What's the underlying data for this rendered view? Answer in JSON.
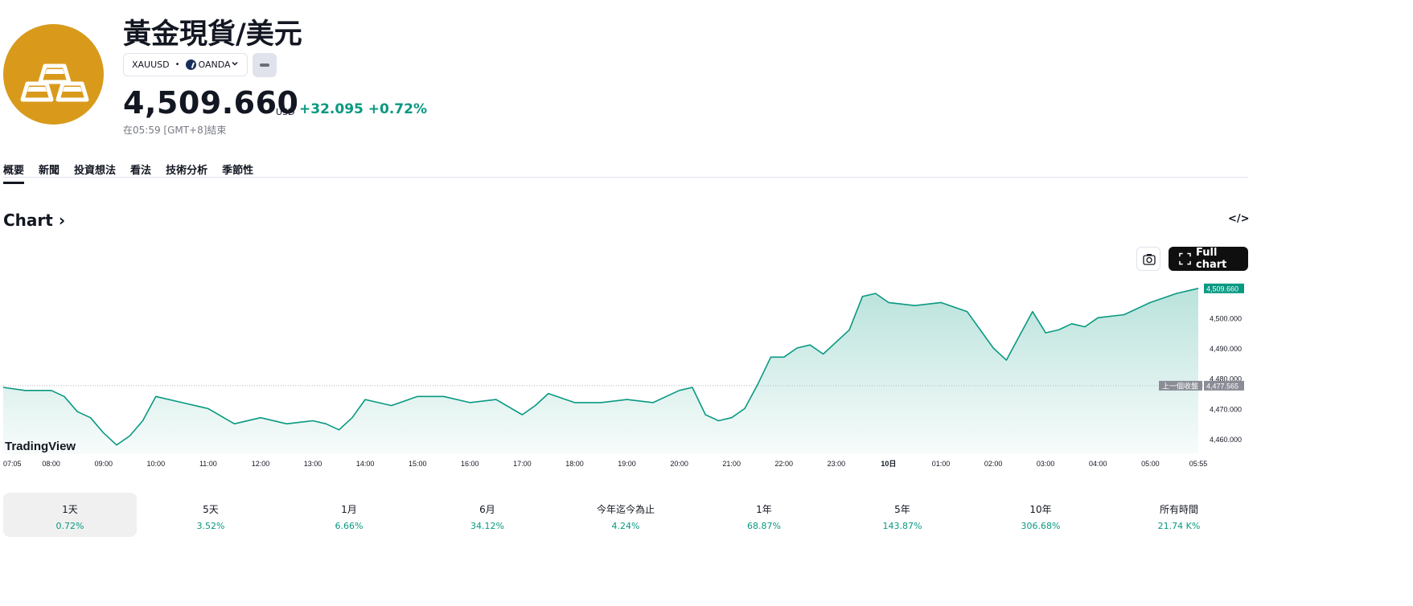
{
  "header": {
    "title": "黃金現貨/美元",
    "symbol": "XAUUSD",
    "separator": "•",
    "exchange": "OANDA",
    "price": "4,509.660",
    "currency": "USD",
    "change": "+32.095",
    "change_pct": "+0.72%",
    "close_note": "在05:59 [GMT+8]結束"
  },
  "tabs": [
    "概要",
    "新聞",
    "投資想法",
    "看法",
    "技術分析",
    "季節性"
  ],
  "section": {
    "heading": "Chart",
    "arrow": "›",
    "embed": "</>"
  },
  "buttons": {
    "full_chart": "Full chart"
  },
  "colors": {
    "accent": "#089981",
    "logo": "#d99a1c",
    "dark_button": "#0f0f0f"
  },
  "chart_data": {
    "type": "area",
    "x_ticks": [
      "07:05",
      "08:00",
      "09:00",
      "10:00",
      "11:00",
      "12:00",
      "13:00",
      "14:00",
      "15:00",
      "16:00",
      "17:00",
      "18:00",
      "19:00",
      "20:00",
      "21:00",
      "22:00",
      "23:00",
      "10日",
      "01:00",
      "02:00",
      "03:00",
      "04:00",
      "05:00",
      "05:55"
    ],
    "x": [
      "07:05",
      "07:30",
      "08:00",
      "08:15",
      "08:30",
      "08:45",
      "09:00",
      "09:15",
      "09:30",
      "09:45",
      "10:00",
      "10:30",
      "11:00",
      "11:30",
      "12:00",
      "12:30",
      "13:00",
      "13:15",
      "13:30",
      "13:45",
      "14:00",
      "14:30",
      "15:00",
      "15:30",
      "16:00",
      "16:30",
      "17:00",
      "17:15",
      "17:30",
      "18:00",
      "18:30",
      "19:00",
      "19:30",
      "20:00",
      "20:15",
      "20:30",
      "20:45",
      "21:00",
      "21:15",
      "21:30",
      "21:45",
      "22:00",
      "22:15",
      "22:30",
      "22:45",
      "23:00",
      "23:15",
      "23:30",
      "23:45",
      "00:00",
      "00:30",
      "01:00",
      "01:30",
      "02:00",
      "02:15",
      "02:30",
      "02:45",
      "03:00",
      "03:15",
      "03:30",
      "03:45",
      "04:00",
      "04:30",
      "05:00",
      "05:30",
      "05:55"
    ],
    "values": [
      4477,
      4476,
      4476,
      4474,
      4469,
      4467,
      4462,
      4458,
      4461,
      4466,
      4474,
      4472,
      4470,
      4465,
      4467,
      4465,
      4466,
      4465,
      4463,
      4467,
      4473,
      4471,
      4474,
      4474,
      4472,
      4473,
      4468,
      4471,
      4475,
      4472,
      4472,
      4473,
      4472,
      4476,
      4477,
      4468,
      4466,
      4467,
      4470,
      4478,
      4487,
      4487,
      4490,
      4491,
      4488,
      4492,
      4496,
      4507,
      4508,
      4505,
      4504,
      4505,
      4502,
      4490,
      4486,
      4494,
      4502,
      4495,
      4496,
      4498,
      4497,
      4500,
      4501,
      4505,
      4508,
      4509.66
    ],
    "ylim": [
      4455,
      4512
    ],
    "y_ticks": [
      "4,460.000",
      "4,470.000",
      "4,480.000",
      "4,490.000",
      "4,500.000"
    ],
    "last_value_label": "4,509.660",
    "prev_close": 4477.565,
    "prev_close_label": "4,477.565",
    "prev_close_title": "上一個收盤",
    "watermark": "TradingView",
    "grid": false
  },
  "periods": [
    {
      "label": "1天",
      "value": "0.72%"
    },
    {
      "label": "5天",
      "value": "3.52%"
    },
    {
      "label": "1月",
      "value": "6.66%"
    },
    {
      "label": "6月",
      "value": "34.12%"
    },
    {
      "label": "今年迄今為止",
      "value": "4.24%"
    },
    {
      "label": "1年",
      "value": "68.87%"
    },
    {
      "label": "5年",
      "value": "143.87%"
    },
    {
      "label": "10年",
      "value": "306.68%"
    },
    {
      "label": "所有時間",
      "value": "21.74 K%"
    }
  ]
}
